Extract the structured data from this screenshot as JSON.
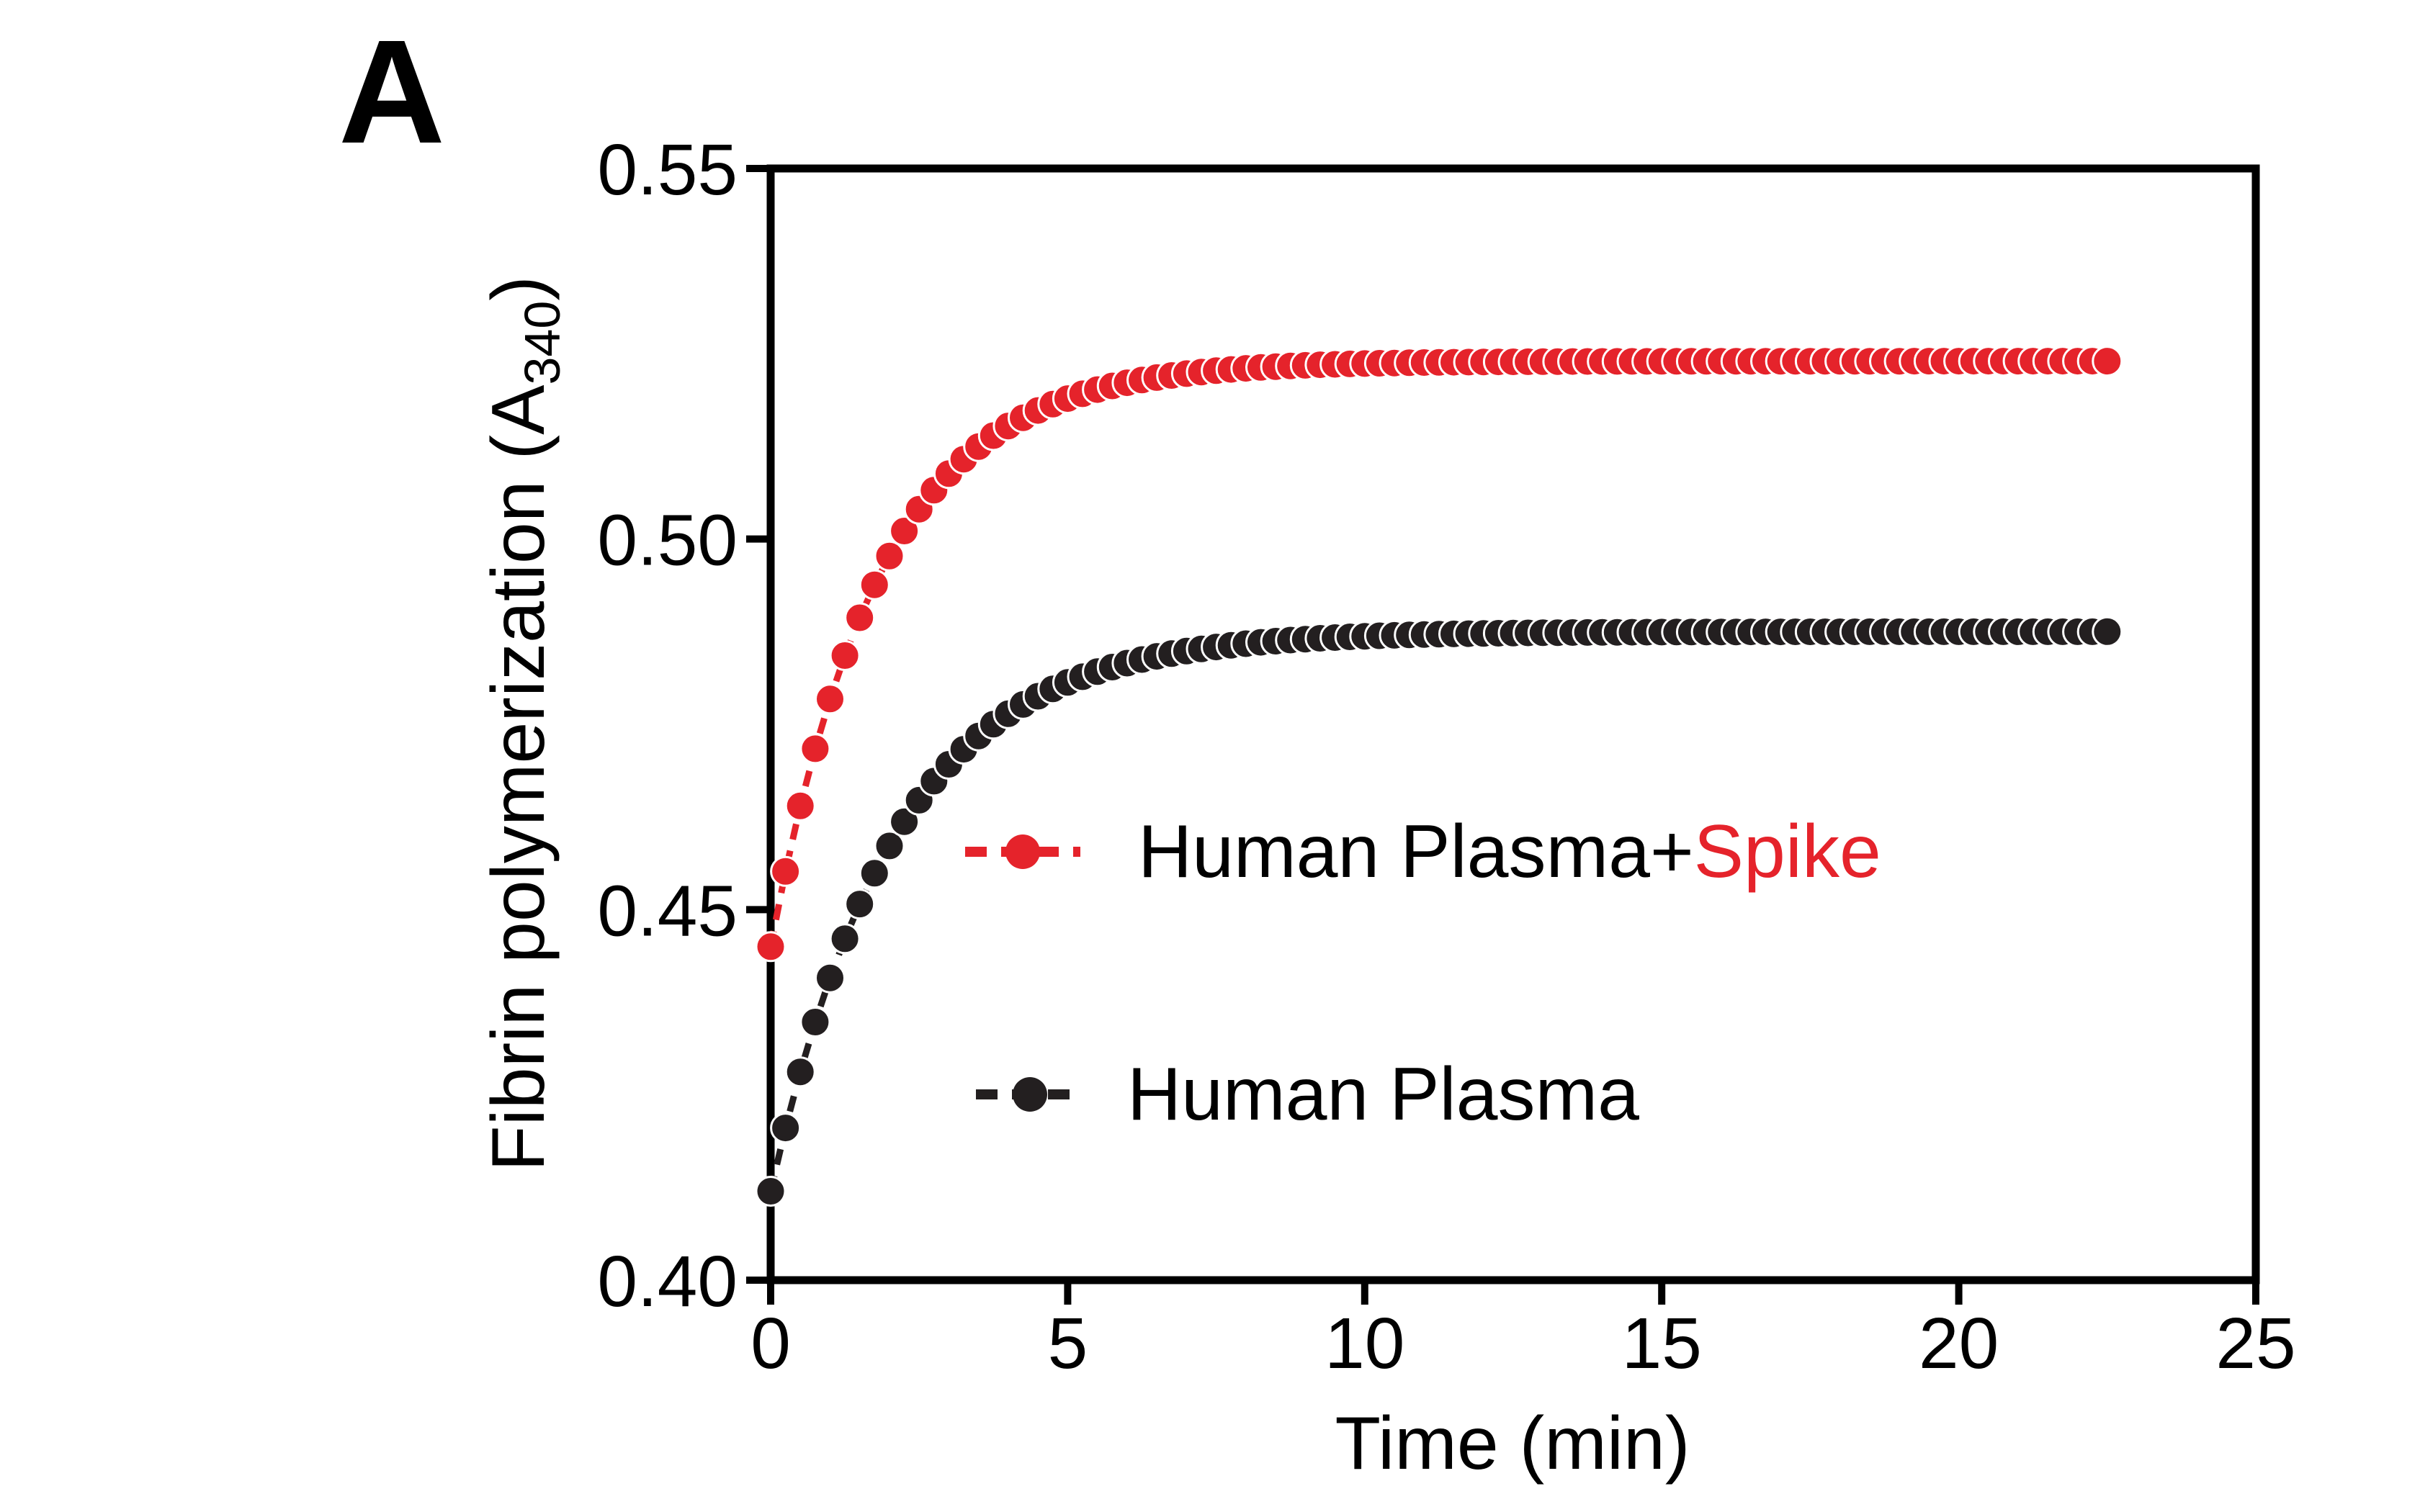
{
  "panel_label": "A",
  "chart_data": {
    "type": "scatter",
    "xlabel": "Time (min)",
    "ylabel_main": "Fibrin polymerization (A",
    "ylabel_sub": "340",
    "ylabel_end": ")",
    "xlim": [
      0,
      25
    ],
    "ylim": [
      0.4,
      0.55
    ],
    "xticks": [
      "0",
      "5",
      "10",
      "15",
      "20",
      "25"
    ],
    "yticks": [
      "0.40",
      "0.45",
      "0.50",
      "0.55"
    ],
    "grid": false,
    "legend_position": "center",
    "series": [
      {
        "name_main": "Human Plasma+",
        "name_accent": "Spike",
        "color": "#e5232b",
        "ymin": 0.445,
        "ymax": 0.524,
        "rate": 0.55,
        "x_end": 22.5,
        "step": 0.25,
        "marker": "circle",
        "line": "dashed"
      },
      {
        "name_main": "Human Plasma",
        "name_accent": "",
        "color": "#231f20",
        "ymin": 0.412,
        "ymax": 0.4875,
        "rate": 0.48,
        "x_end": 22.5,
        "step": 0.25,
        "marker": "circle",
        "line": "dashed"
      }
    ]
  }
}
